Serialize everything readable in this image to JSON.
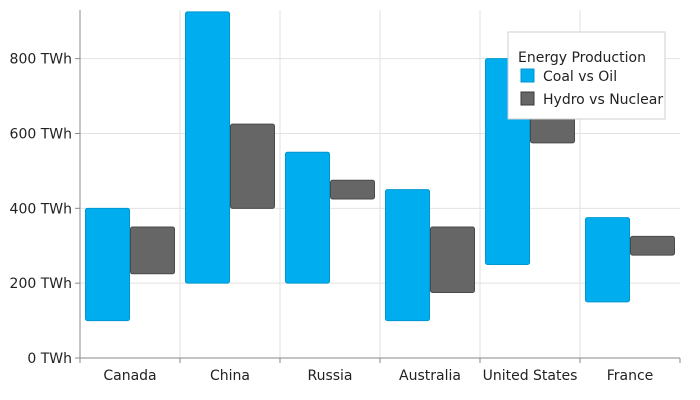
{
  "chart_data": {
    "type": "bar",
    "subtype": "range",
    "categories": [
      "Canada",
      "China",
      "Russia",
      "Australia",
      "United States",
      "France"
    ],
    "series": [
      {
        "name": "Coal vs Oil",
        "color": "#00aeef",
        "ranges": [
          [
            100,
            400
          ],
          [
            200,
            925
          ],
          [
            200,
            550
          ],
          [
            100,
            450
          ],
          [
            250,
            800
          ],
          [
            150,
            375
          ]
        ]
      },
      {
        "name": "Hydro vs Nuclear",
        "color": "#666666",
        "ranges": [
          [
            225,
            350
          ],
          [
            400,
            625
          ],
          [
            425,
            475
          ],
          [
            175,
            350
          ],
          [
            575,
            775
          ],
          [
            275,
            325
          ]
        ]
      }
    ],
    "yaxis": {
      "min": 0,
      "max": 930,
      "ticks": [
        0,
        200,
        400,
        600,
        800
      ],
      "tick_labels": [
        "0 TWh",
        "200 TWh",
        "400 TWh",
        "600 TWh",
        "800 TWh"
      ]
    },
    "grid": true,
    "legend": {
      "title": "Energy Production",
      "position": "top-right"
    }
  }
}
